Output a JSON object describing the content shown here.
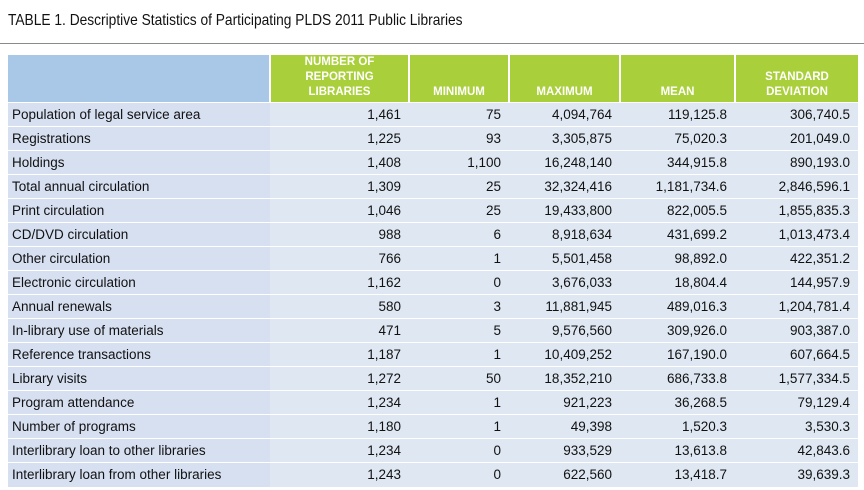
{
  "title": "TABLE 1. Descriptive Statistics of Participating PLDS 2011 Public Libraries",
  "table": {
    "headers": [
      "",
      "NUMBER OF\nREPORTING LIBRARIES",
      "MINIMUM",
      "MAXIMUM",
      "MEAN",
      "STANDARD\nDEVIATION"
    ],
    "header_lines": [
      [],
      [
        "NUMBER OF",
        "REPORTING LIBRARIES"
      ],
      [
        "MINIMUM"
      ],
      [
        "MAXIMUM"
      ],
      [
        "MEAN"
      ],
      [
        "STANDARD",
        "DEVIATION"
      ]
    ],
    "rows": [
      [
        "Population of legal service area",
        "1,461",
        "75",
        "4,094,764",
        "119,125.8",
        "306,740.5"
      ],
      [
        "Registrations",
        "1,225",
        "93",
        "3,305,875",
        "75,020.3",
        "201,049.0"
      ],
      [
        "Holdings",
        "1,408",
        "1,100",
        "16,248,140",
        "344,915.8",
        "890,193.0"
      ],
      [
        "Total annual circulation",
        "1,309",
        "25",
        "32,324,416",
        "1,181,734.6",
        "2,846,596.1"
      ],
      [
        "Print circulation",
        "1,046",
        "25",
        "19,433,800",
        "822,005.5",
        "1,855,835.3"
      ],
      [
        "CD/DVD circulation",
        "988",
        "6",
        "8,918,634",
        "431,699.2",
        "1,013,473.4"
      ],
      [
        "Other circulation",
        "766",
        "1",
        "5,501,458",
        "98,892.0",
        "422,351.2"
      ],
      [
        "Electronic circulation",
        "1,162",
        "0",
        "3,676,033",
        "18,804.4",
        "144,957.9"
      ],
      [
        "Annual renewals",
        "580",
        "3",
        "11,881,945",
        "489,016.3",
        "1,204,781.4"
      ],
      [
        "In-library use of materials",
        "471",
        "5",
        "9,576,560",
        "309,926.0",
        "903,387.0"
      ],
      [
        "Reference transactions",
        "1,187",
        "1",
        "10,409,252",
        "167,190.0",
        "607,664.5"
      ],
      [
        "Library visits",
        "1,272",
        "50",
        "18,352,210",
        "686,733.8",
        "1,577,334.5"
      ],
      [
        "Program attendance",
        "1,234",
        "1",
        "921,223",
        "36,268.5",
        "79,129.4"
      ],
      [
        "Number of programs",
        "1,180",
        "1",
        "49,398",
        "1,520.3",
        "3,530.3"
      ],
      [
        "Interlibrary loan to other libraries",
        "1,234",
        "0",
        "933,529",
        "13,613.8",
        "42,843.6"
      ],
      [
        "Interlibrary loan from other libraries",
        "1,243",
        "0",
        "622,560",
        "13,418.7",
        "39,639.3"
      ]
    ]
  },
  "colors": {
    "header_green": "#a9cf3a",
    "header_blank_blue": "#a9c8e8",
    "row_label_bg": "#d7e0f1",
    "row_value_bg": "#dfe8f2",
    "text": "#111111"
  }
}
